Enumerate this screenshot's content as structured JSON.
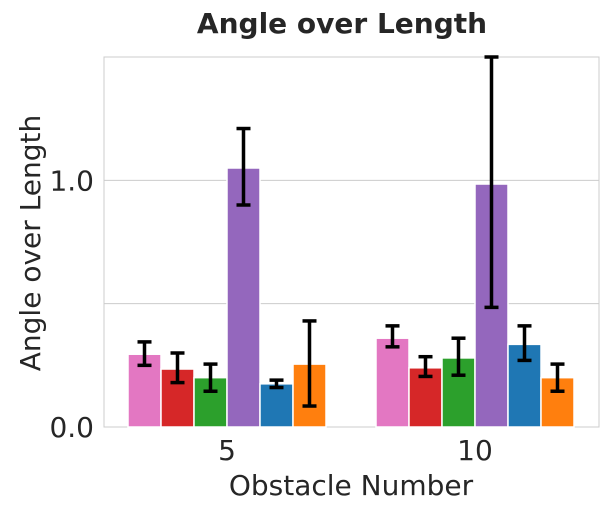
{
  "chart_data": {
    "type": "bar",
    "title": "Angle over Length",
    "xlabel": "Obstacle Number",
    "ylabel": "Angle over Length",
    "categories": [
      "5",
      "10"
    ],
    "yticks": [
      0.0,
      1.0
    ],
    "ytick_labels": [
      "0.0",
      "1.0"
    ],
    "ylim": [
      0,
      1.5
    ],
    "grid": true,
    "series": [
      {
        "color": "#e377c2",
        "values": [
          0.295,
          0.36
        ],
        "err_low": [
          0.25,
          0.325
        ],
        "err_high": [
          0.345,
          0.41
        ]
      },
      {
        "color": "#d62728",
        "values": [
          0.235,
          0.24
        ],
        "err_low": [
          0.18,
          0.205
        ],
        "err_high": [
          0.3,
          0.285
        ]
      },
      {
        "color": "#2ca02c",
        "values": [
          0.2,
          0.28
        ],
        "err_low": [
          0.145,
          0.21
        ],
        "err_high": [
          0.255,
          0.36
        ]
      },
      {
        "color": "#9467bd",
        "values": [
          1.05,
          0.985
        ],
        "err_low": [
          0.9,
          0.485
        ],
        "err_high": [
          1.21,
          1.5
        ]
      },
      {
        "color": "#1f77b4",
        "values": [
          0.175,
          0.335
        ],
        "err_low": [
          0.16,
          0.27
        ],
        "err_high": [
          0.19,
          0.41
        ]
      },
      {
        "color": "#ff7f0e",
        "values": [
          0.255,
          0.2
        ],
        "err_low": [
          0.085,
          0.145
        ],
        "err_high": [
          0.43,
          0.255
        ]
      }
    ]
  }
}
